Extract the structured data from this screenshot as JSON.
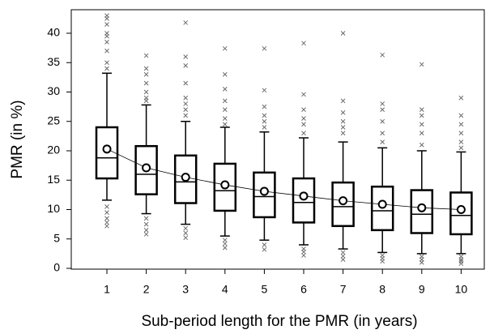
{
  "chart_data": {
    "type": "box",
    "x_label": "Sub-period length for the PMR (in years)",
    "y_label": "PMR (in %)",
    "categories": [
      "1",
      "2",
      "3",
      "4",
      "5",
      "6",
      "7",
      "8",
      "9",
      "10"
    ],
    "ylim": [
      0,
      44
    ],
    "yticks": [
      0,
      5,
      10,
      15,
      20,
      25,
      30,
      35,
      40
    ],
    "box_color": "#000000",
    "flier_color": "#666666",
    "mean_fill": "#ffffff",
    "boxes": [
      {
        "whislo": 11.6,
        "q1": 15.3,
        "med": 18.8,
        "q3": 24.0,
        "whishi": 33.2,
        "mean": 20.3,
        "fliers": [
          43,
          42.5,
          41.5,
          40,
          39.5,
          38.5,
          37,
          35,
          34,
          10.5,
          9.5,
          8.5,
          7.8,
          7.2
        ]
      },
      {
        "whislo": 9.3,
        "q1": 12.6,
        "med": 16.0,
        "q3": 20.8,
        "whishi": 27.8,
        "mean": 17.1,
        "fliers": [
          36.2,
          34,
          33,
          31.5,
          30,
          29,
          28.5,
          8.5,
          7.5,
          6.5,
          5.8
        ]
      },
      {
        "whislo": 7.5,
        "q1": 11.1,
        "med": 14.7,
        "q3": 19.2,
        "whishi": 25.0,
        "mean": 15.5,
        "fliers": [
          41.8,
          36,
          34.5,
          31.5,
          29,
          28,
          27,
          26,
          6.8,
          6,
          5.2
        ]
      },
      {
        "whislo": 5.5,
        "q1": 9.8,
        "med": 13.2,
        "q3": 17.8,
        "whishi": 24.0,
        "mean": 14.2,
        "fliers": [
          37.4,
          33,
          30.5,
          28.5,
          27,
          25.5,
          24.5,
          4.8,
          4.2,
          3.5
        ]
      },
      {
        "whislo": 4.8,
        "q1": 8.7,
        "med": 12.2,
        "q3": 16.3,
        "whishi": 23.2,
        "mean": 13.1,
        "fliers": [
          37.4,
          30.3,
          27.5,
          26,
          25,
          24,
          4,
          3.2
        ]
      },
      {
        "whislo": 4.0,
        "q1": 7.8,
        "med": 11.2,
        "q3": 15.3,
        "whishi": 22.2,
        "mean": 12.3,
        "fliers": [
          38.3,
          29.6,
          27,
          25.5,
          24.5,
          23,
          3.3,
          2.8,
          2.2
        ]
      },
      {
        "whislo": 3.3,
        "q1": 7.2,
        "med": 10.5,
        "q3": 14.6,
        "whishi": 21.5,
        "mean": 11.5,
        "fliers": [
          40,
          28.5,
          26.5,
          25,
          24,
          23,
          2.7,
          2.1,
          1.5
        ]
      },
      {
        "whislo": 2.7,
        "q1": 6.5,
        "med": 9.8,
        "q3": 13.9,
        "whishi": 20.5,
        "mean": 10.9,
        "fliers": [
          36.3,
          28,
          27,
          25,
          23,
          21.5,
          2.2,
          1.7,
          1.2
        ]
      },
      {
        "whislo": 2.5,
        "q1": 6.0,
        "med": 9.2,
        "q3": 13.3,
        "whishi": 20.0,
        "mean": 10.3,
        "fliers": [
          34.7,
          27,
          26,
          24.5,
          23,
          21,
          2,
          1.5,
          1
        ]
      },
      {
        "whislo": 2.5,
        "q1": 5.8,
        "med": 9.0,
        "q3": 12.9,
        "whishi": 19.8,
        "mean": 10.0,
        "fliers": [
          29,
          26,
          24.5,
          23,
          21.5,
          20.5,
          2,
          1.5,
          1.2,
          0.8
        ]
      }
    ]
  }
}
